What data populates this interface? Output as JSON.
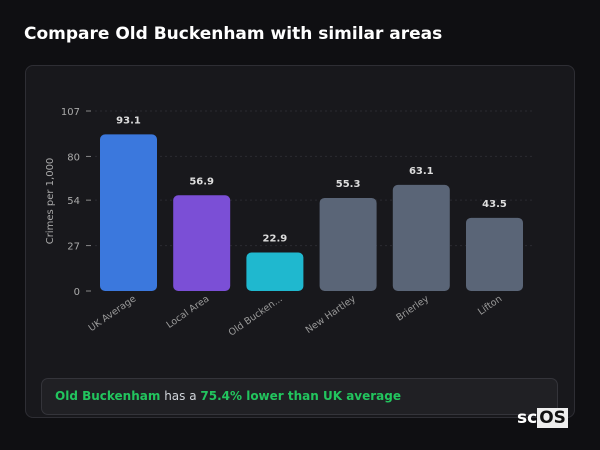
{
  "title": "Compare Old Buckenham with similar areas",
  "chart_data": {
    "type": "bar",
    "categories": [
      "UK Average",
      "Local Area",
      "Old Bucken...",
      "New Hartley",
      "Brierley",
      "Lifton"
    ],
    "values": [
      93.1,
      56.9,
      22.9,
      55.3,
      63.1,
      43.5
    ],
    "data_labels": [
      "93.1",
      "56.9",
      "22.9",
      "55.3",
      "63.1",
      "43.5"
    ],
    "colors": [
      "#3b78dd",
      "#7b4fd6",
      "#1fb8cf",
      "#5a6577",
      "#5a6577",
      "#5a6577"
    ],
    "ylabel": "Crimes per 1,000",
    "xlabel": "",
    "yticks": [
      0,
      27,
      54,
      80,
      107
    ],
    "ylim": [
      0,
      107
    ],
    "grid": true
  },
  "footer": {
    "area": "Old Buckenham",
    "middle": " has a ",
    "highlight": "75.4% lower than UK average"
  },
  "logo": {
    "a": "sc",
    "b": "OS"
  }
}
